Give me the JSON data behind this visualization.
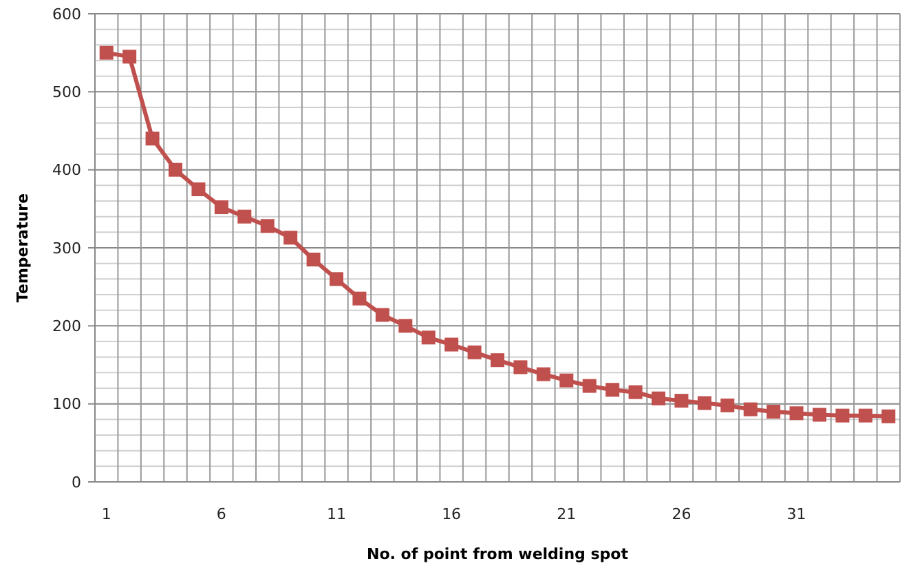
{
  "chart_data": {
    "type": "line",
    "xlabel": "No. of point from welding spot",
    "ylabel": "Temperature",
    "categories": [
      "1",
      null,
      null,
      null,
      null,
      "6",
      null,
      null,
      null,
      null,
      "11",
      null,
      null,
      null,
      null,
      "16",
      null,
      null,
      null,
      null,
      "21",
      null,
      null,
      null,
      null,
      "26",
      null,
      null,
      null,
      null,
      "31",
      null,
      null,
      null,
      null
    ],
    "series": [
      {
        "color": "#c0504d",
        "values": [
          550,
          545,
          440,
          400,
          375,
          352,
          340,
          328,
          313,
          285,
          260,
          235,
          214,
          200,
          185,
          176,
          166,
          156,
          147,
          138,
          130,
          123,
          118,
          115,
          107,
          104,
          101,
          98,
          93,
          90,
          88,
          86,
          85,
          85,
          84
        ]
      }
    ],
    "ylim": [
      0,
      600
    ],
    "yticks": [
      0,
      {
        "value": 20,
        "label": null
      },
      {
        "value": 40,
        "label": null
      },
      {
        "value": 60,
        "label": null
      },
      {
        "value": 80,
        "label": null
      },
      100,
      {
        "value": 120,
        "label": null
      },
      {
        "value": 140,
        "label": null
      },
      {
        "value": 160,
        "label": null
      },
      {
        "value": 180,
        "label": null
      },
      200,
      {
        "value": 220,
        "label": null
      },
      {
        "value": 240,
        "label": null
      },
      {
        "value": 260,
        "label": null
      },
      {
        "value": 280,
        "label": null
      },
      300,
      {
        "value": 320,
        "label": null
      },
      {
        "value": 340,
        "label": null
      },
      {
        "value": 360,
        "label": null
      },
      {
        "value": 380,
        "label": null
      },
      400,
      {
        "value": 420,
        "label": null
      },
      {
        "value": 440,
        "label": null
      },
      {
        "value": 460,
        "label": null
      },
      {
        "value": 480,
        "label": null
      },
      500,
      {
        "value": 520,
        "label": null
      },
      {
        "value": 540,
        "label": null
      },
      {
        "value": 560,
        "label": null
      },
      {
        "value": 580,
        "label": null
      },
      600
    ],
    "grid": true,
    "marker": "square",
    "line_style": "solid"
  }
}
